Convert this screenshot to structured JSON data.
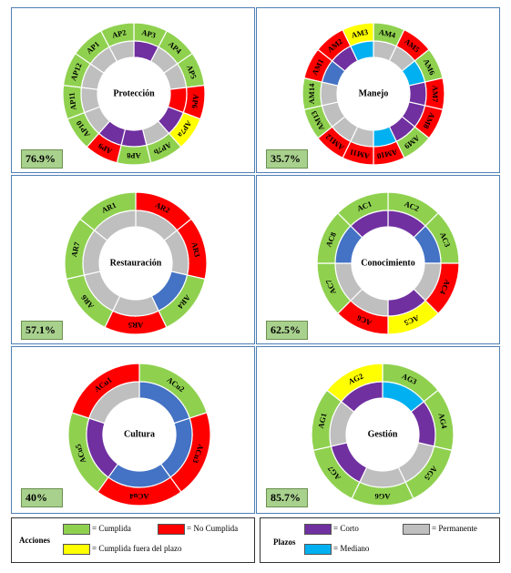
{
  "colors": {
    "green": "#8fd14f",
    "red": "#ff0000",
    "yellow": "#ffff00",
    "purple": "#7030a0",
    "gray": "#bfbfbf",
    "blue": "#4472c4",
    "cyan": "#00b0f0"
  },
  "chart_data": [
    {
      "type": "donut",
      "center_label": "Protección",
      "percentage": "76.9%",
      "segments": [
        {
          "label": "AP3",
          "status": "green",
          "term": "purple"
        },
        {
          "label": "AP4",
          "status": "green",
          "term": "gray"
        },
        {
          "label": "AP5",
          "status": "green",
          "term": "gray"
        },
        {
          "label": "AP6",
          "status": "red",
          "term": "red"
        },
        {
          "label": "AP7a",
          "status": "yellow",
          "term": "purple"
        },
        {
          "label": "AP7b",
          "status": "green",
          "term": "gray"
        },
        {
          "label": "AP8",
          "status": "green",
          "term": "purple"
        },
        {
          "label": "AP9",
          "status": "red",
          "term": "purple"
        },
        {
          "label": "AP10",
          "status": "green",
          "term": "gray"
        },
        {
          "label": "AP11",
          "status": "green",
          "term": "gray"
        },
        {
          "label": "AP12",
          "status": "green",
          "term": "gray"
        },
        {
          "label": "AP1",
          "status": "green",
          "term": "gray"
        },
        {
          "label": "AP2",
          "status": "green",
          "term": "gray"
        }
      ]
    },
    {
      "type": "donut",
      "center_label": "Manejo",
      "percentage": "35.7%",
      "segments": [
        {
          "label": "AM4",
          "status": "green",
          "term": "gray"
        },
        {
          "label": "AM5",
          "status": "red",
          "term": "gray"
        },
        {
          "label": "AM6",
          "status": "green",
          "term": "cyan"
        },
        {
          "label": "AM7",
          "status": "red",
          "term": "purple"
        },
        {
          "label": "AM8",
          "status": "red",
          "term": "purple"
        },
        {
          "label": "AM9",
          "status": "green",
          "term": "purple"
        },
        {
          "label": "AM10",
          "status": "red",
          "term": "cyan"
        },
        {
          "label": "AM11",
          "status": "red",
          "term": "gray"
        },
        {
          "label": "AM12",
          "status": "red",
          "term": "gray"
        },
        {
          "label": "AM13",
          "status": "green",
          "term": "gray"
        },
        {
          "label": "AM14",
          "status": "green",
          "term": "gray"
        },
        {
          "label": "AM1",
          "status": "red",
          "term": "blue"
        },
        {
          "label": "AM2",
          "status": "red",
          "term": "purple"
        },
        {
          "label": "AM3",
          "status": "yellow",
          "term": "cyan"
        }
      ]
    },
    {
      "type": "donut",
      "center_label": "Restauración",
      "percentage": "57.1%",
      "segments": [
        {
          "label": "AR2",
          "status": "red",
          "term": "gray"
        },
        {
          "label": "AR3",
          "status": "red",
          "term": "gray"
        },
        {
          "label": "AR4",
          "status": "green",
          "term": "blue"
        },
        {
          "label": "AR5",
          "status": "red",
          "term": "gray"
        },
        {
          "label": "AR6",
          "status": "green",
          "term": "gray"
        },
        {
          "label": "AR7",
          "status": "green",
          "term": "gray"
        },
        {
          "label": "AR1",
          "status": "green",
          "term": "gray"
        }
      ]
    },
    {
      "type": "donut",
      "center_label": "Conocimiento",
      "percentage": "62.5%",
      "segments": [
        {
          "label": "AC2",
          "status": "green",
          "term": "purple"
        },
        {
          "label": "AC3",
          "status": "green",
          "term": "blue"
        },
        {
          "label": "AC4",
          "status": "red",
          "term": "gray"
        },
        {
          "label": "AC5",
          "status": "yellow",
          "term": "purple"
        },
        {
          "label": "AC6",
          "status": "red",
          "term": "gray"
        },
        {
          "label": "AC7",
          "status": "green",
          "term": "gray"
        },
        {
          "label": "AC8",
          "status": "green",
          "term": "blue"
        },
        {
          "label": "AC1",
          "status": "green",
          "term": "purple"
        }
      ]
    },
    {
      "type": "donut",
      "center_label": "Cultura",
      "percentage": "40%",
      "segments": [
        {
          "label": "ACu2",
          "status": "green",
          "term": "blue"
        },
        {
          "label": "ACu3",
          "status": "red",
          "term": "blue"
        },
        {
          "label": "ACu4",
          "status": "red",
          "term": "blue"
        },
        {
          "label": "ACu5",
          "status": "green",
          "term": "purple"
        },
        {
          "label": "ACu1",
          "status": "red",
          "term": "gray"
        }
      ]
    },
    {
      "type": "donut",
      "center_label": "Gestión",
      "percentage": "85.7%",
      "segments": [
        {
          "label": "AG3",
          "status": "green",
          "term": "cyan"
        },
        {
          "label": "AG4",
          "status": "green",
          "term": "purple"
        },
        {
          "label": "AG5",
          "status": "green",
          "term": "gray"
        },
        {
          "label": "AG6",
          "status": "green",
          "term": "gray"
        },
        {
          "label": "AG7",
          "status": "green",
          "term": "purple"
        },
        {
          "label": "AG1",
          "status": "green",
          "term": "gray"
        },
        {
          "label": "AG2",
          "status": "yellow",
          "term": "purple"
        }
      ]
    }
  ],
  "legend": {
    "acciones": {
      "title": "Acciones",
      "cumplida": "= Cumplida",
      "no_cumplida": "= No Cumplida",
      "fuera_plazo": "= Cumplida fuera del plazo"
    },
    "plazos": {
      "title": "Plazos",
      "corto": "= Corto",
      "permanente": "= Permanente",
      "mediano": "= Mediano"
    }
  }
}
